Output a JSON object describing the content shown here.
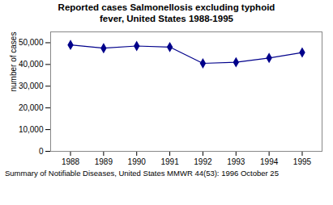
{
  "chart_data": {
    "type": "line",
    "title": "Reported cases Salmonellosis excluding typhoid\nfever, United States 1988-1995",
    "caption": "Summary of Notifiable Diseases, United States MMWR 44(53): 1996 October 25",
    "x": [
      1988,
      1989,
      1990,
      1991,
      1992,
      1993,
      1994,
      1995
    ],
    "values": [
      49000,
      47500,
      48500,
      48000,
      40500,
      41000,
      43000,
      45500
    ],
    "ylabel": "number of cases",
    "xlim": [
      1987.4,
      1995.6
    ],
    "xticks": [
      1988,
      1989,
      1990,
      1991,
      1992,
      1993,
      1994,
      1995
    ],
    "ylim": [
      0,
      55000
    ],
    "yticks": [
      0,
      {
        "value": 10000,
        "label": "10,000"
      },
      {
        "value": 20000,
        "label": "20,000"
      },
      {
        "value": 30000,
        "label": "30,000"
      },
      {
        "value": 40000,
        "label": "40,000"
      },
      {
        "value": 50000,
        "label": "50,000"
      }
    ],
    "color": "#00008B",
    "marker": "diamond",
    "grid": false
  }
}
